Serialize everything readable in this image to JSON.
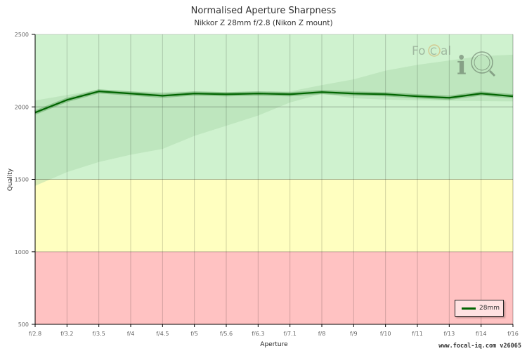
{
  "header": {
    "title": "Normalised Aperture Sharpness",
    "subtitle": "Nikkor Z 28mm f/2.8 (Nikon Z mount)"
  },
  "footer": {
    "text": "www.focal-iq.com  v26065"
  },
  "legend": {
    "label": "28mm",
    "color": "#006400"
  },
  "logo": {
    "text_focal": "FoCal",
    "text_iq": "iQ"
  },
  "colors": {
    "zone_good": "#cff2cf",
    "zone_ok": "#ffffc0",
    "zone_bad": "#ffc2c2",
    "line": "#006400",
    "band": "#a8d8a8"
  },
  "chart_data": {
    "type": "line",
    "title": "Normalised Aperture Sharpness",
    "subtitle": "Nikkor Z 28mm f/2.8 (Nikon Z mount)",
    "xlabel": "Aperture",
    "ylabel": "Quality",
    "ylim": [
      500,
      2500
    ],
    "yticks": [
      500,
      1000,
      1500,
      2000,
      2500
    ],
    "grid": true,
    "legend_position": "bottom-right",
    "categories": [
      "f/2.8",
      "f/3.2",
      "f/3.5",
      "f/4",
      "f/4.5",
      "f/5",
      "f/5.6",
      "f/6.3",
      "f/7.1",
      "f/8",
      "f/9",
      "f/10",
      "f/11",
      "f/13",
      "f/14",
      "f/16"
    ],
    "series": [
      {
        "name": "28mm",
        "values": [
          1961,
          2048,
          2107,
          2092,
          2077,
          2092,
          2087,
          2092,
          2087,
          2102,
          2092,
          2087,
          2073,
          2063,
          2092,
          2073
        ]
      }
    ],
    "zones": [
      {
        "name": "good",
        "from": 1500,
        "to": 2500,
        "color": "#cff2cf"
      },
      {
        "name": "acceptable",
        "from": 1000,
        "to": 1500,
        "color": "#ffffc0"
      },
      {
        "name": "poor",
        "from": 500,
        "to": 1000,
        "color": "#ffc2c2"
      }
    ],
    "bands": [
      {
        "name": "upper-band",
        "upper": [
          2044,
          2082,
          2117,
          2107,
          2102,
          2107,
          2102,
          2107,
          2107,
          2150,
          2190,
          2250,
          2290,
          2320,
          2350,
          2360
        ],
        "lower": [
          1961,
          2048,
          2107,
          2092,
          2077,
          2092,
          2087,
          2092,
          2087,
          2102,
          2092,
          2087,
          2073,
          2063,
          2092,
          2073
        ]
      },
      {
        "name": "lower-band",
        "upper": [
          1961,
          2048,
          2107,
          2092,
          2077,
          2092,
          2087,
          2092,
          2087,
          2102,
          2092,
          2087,
          2073,
          2063,
          2092,
          2073
        ],
        "lower": [
          1455,
          1550,
          1620,
          1670,
          1710,
          1800,
          1870,
          1940,
          2030,
          2090,
          2060,
          2050,
          2045,
          2042,
          2040,
          2038
        ]
      }
    ]
  }
}
